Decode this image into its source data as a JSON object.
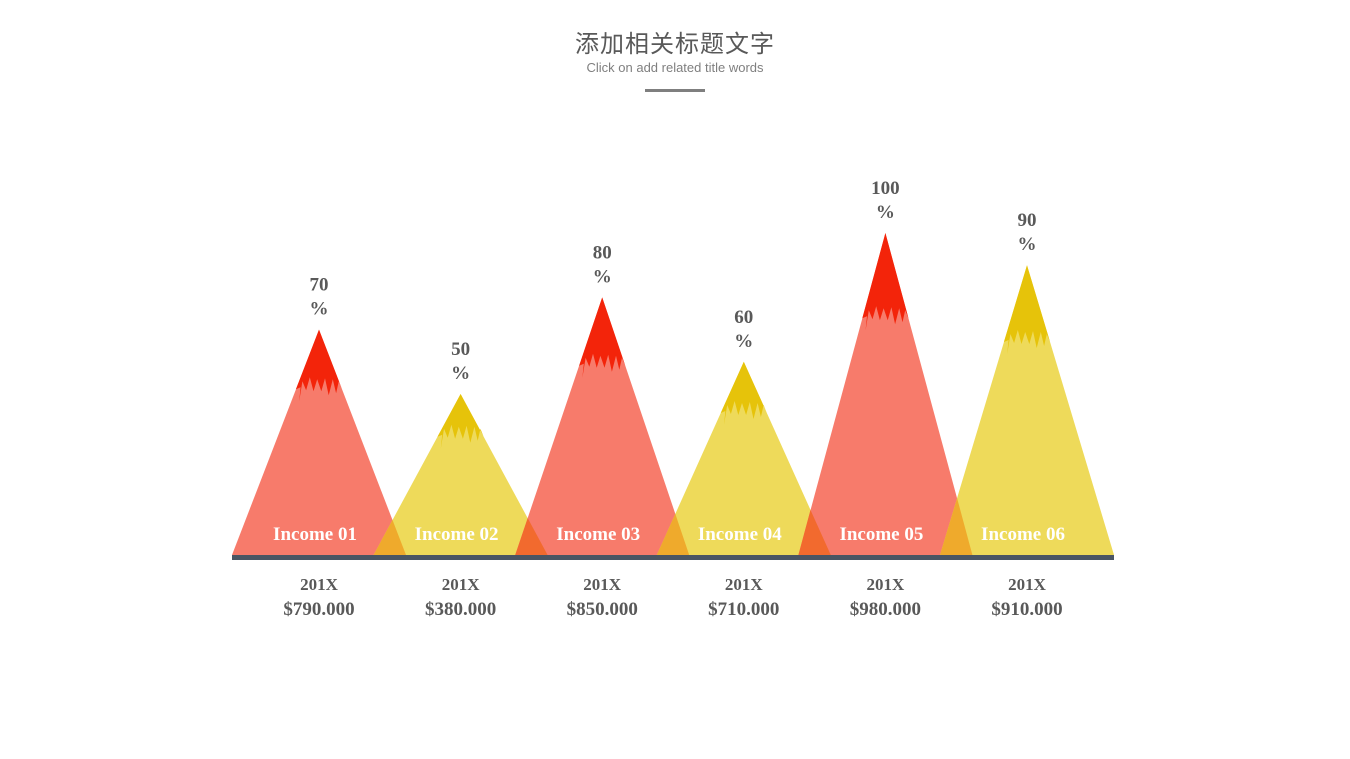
{
  "header": {
    "title": "添加相关标题文字",
    "subtitle": "Click on add related title words"
  },
  "colors": {
    "red_body": "#f77b6b",
    "red_peak": "#f3240a",
    "yellow_body": "#eeda5a",
    "yellow_peak": "#e6c30a",
    "overlap_red": "#f26a2e",
    "overlap_yellow": "#efaa2c",
    "baseline": "#4a5563",
    "value_text": "#595959",
    "label_text": "#ffffff"
  },
  "chart_data": {
    "type": "bar",
    "mark": "triangle",
    "categories": [
      "Income 01",
      "Income 02",
      "Income 03",
      "Income 04",
      "Income 05",
      "Income 06"
    ],
    "values": [
      70,
      50,
      80,
      60,
      100,
      90
    ],
    "value_labels": [
      "70\n%",
      "50\n%",
      "80\n%",
      "60\n%",
      "100\n%",
      "90\n%"
    ],
    "years": [
      "201X",
      "201X",
      "201X",
      "201X",
      "201X",
      "201X"
    ],
    "amounts": [
      "$790.000",
      "$380.000",
      "$850.000",
      "$710.000",
      "$980.000",
      "$910.000"
    ],
    "colors": [
      "red",
      "yellow",
      "red",
      "yellow",
      "red",
      "yellow"
    ],
    "ylim": [
      0,
      100
    ],
    "grid": false,
    "legend": "none"
  }
}
